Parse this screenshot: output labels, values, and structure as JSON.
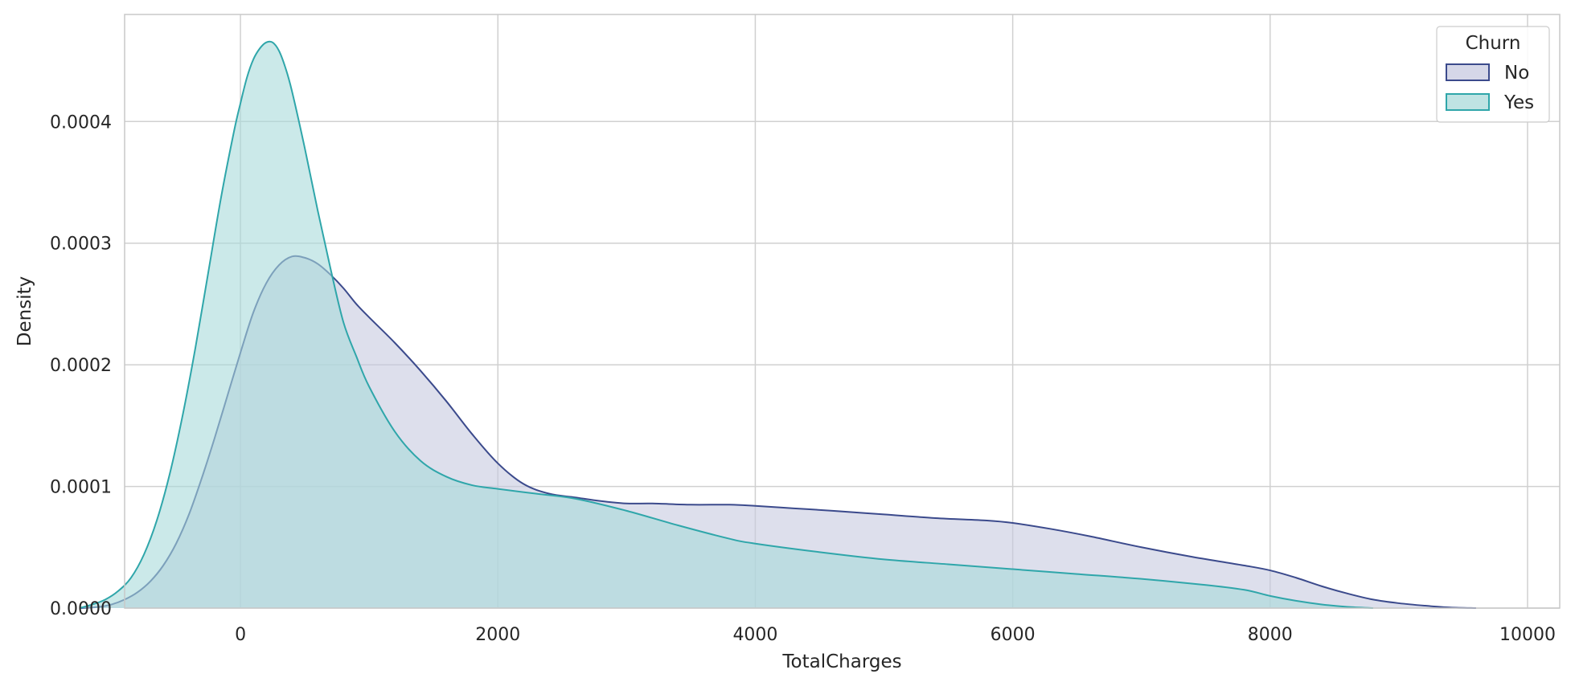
{
  "chart_data": {
    "type": "area",
    "title": "",
    "xlabel": "TotalCharges",
    "ylabel": "Density",
    "xlim": [
      -900,
      10250
    ],
    "ylim": [
      0,
      0.000488
    ],
    "grid": true,
    "x_ticks": [
      0,
      2000,
      4000,
      6000,
      8000,
      10000
    ],
    "x_tick_labels": [
      "0",
      "2000",
      "4000",
      "6000",
      "8000",
      "10000"
    ],
    "y_ticks": [
      0,
      0.0001,
      0.0002,
      0.0003,
      0.0004
    ],
    "y_tick_labels": [
      "0.0000",
      "0.0001",
      "0.0002",
      "0.0003",
      "0.0004"
    ],
    "legend": {
      "title": "Churn",
      "position": "top-right"
    },
    "series": [
      {
        "name": "No",
        "line_color": "#3b4a8c",
        "fill_color": "#c7c9e0",
        "x": [
          -1250,
          -1100,
          -1000,
          -900,
          -800,
          -700,
          -600,
          -500,
          -400,
          -300,
          -200,
          -100,
          0,
          100,
          200,
          300,
          400,
          500,
          600,
          700,
          800,
          900,
          1000,
          1200,
          1400,
          1600,
          1800,
          2000,
          2200,
          2400,
          2600,
          2800,
          3000,
          3200,
          3500,
          3800,
          4000,
          4300,
          4600,
          5000,
          5400,
          5800,
          6000,
          6300,
          6600,
          7000,
          7400,
          7800,
          8000,
          8200,
          8400,
          8600,
          8800,
          9000,
          9200,
          9400,
          9600
        ],
        "y": [
          0,
          1e-06,
          3e-06,
          7e-06,
          1.3e-05,
          2.2e-05,
          3.5e-05,
          5.3e-05,
          7.7e-05,
          0.000107,
          0.00014,
          0.000175,
          0.00021,
          0.000243,
          0.000267,
          0.000282,
          0.000289,
          0.000288,
          0.000283,
          0.000274,
          0.000263,
          0.00025,
          0.000239,
          0.000218,
          0.000195,
          0.00017,
          0.000143,
          0.000119,
          0.000102,
          9.4e-05,
          9.1e-05,
          8.8e-05,
          8.6e-05,
          8.6e-05,
          8.5e-05,
          8.5e-05,
          8.4e-05,
          8.2e-05,
          8e-05,
          7.7e-05,
          7.4e-05,
          7.2e-05,
          7e-05,
          6.5e-05,
          5.9e-05,
          5e-05,
          4.2e-05,
          3.5e-05,
          3.1e-05,
          2.5e-05,
          1.8e-05,
          1.2e-05,
          7e-06,
          4e-06,
          2e-06,
          5e-07,
          0
        ]
      },
      {
        "name": "Yes",
        "line_color": "#2fa6aa",
        "fill_color": "#a9dada",
        "x": [
          -1250,
          -1150,
          -1050,
          -950,
          -850,
          -750,
          -650,
          -550,
          -450,
          -350,
          -250,
          -150,
          -50,
          0,
          50,
          100,
          150,
          200,
          250,
          300,
          350,
          400,
          500,
          600,
          700,
          800,
          900,
          1000,
          1200,
          1400,
          1600,
          1800,
          2000,
          2300,
          2600,
          3000,
          3400,
          3800,
          4000,
          4500,
          5000,
          5500,
          6000,
          6500,
          7000,
          7500,
          7800,
          8000,
          8200,
          8400,
          8600,
          8800
        ],
        "y": [
          0,
          3e-06,
          7e-06,
          1.4e-05,
          2.5e-05,
          4.4e-05,
          7.2e-05,
          0.00011,
          0.000158,
          0.000214,
          0.000276,
          0.000338,
          0.000392,
          0.000415,
          0.000436,
          0.000451,
          0.00046,
          0.000465,
          0.000465,
          0.000458,
          0.000444,
          0.000425,
          0.000378,
          0.000327,
          0.000279,
          0.000235,
          0.000207,
          0.000182,
          0.000145,
          0.000121,
          0.000108,
          0.000101,
          9.8e-05,
          9.4e-05,
          9e-05,
          8e-05,
          6.8e-05,
          5.7e-05,
          5.3e-05,
          4.6e-05,
          4e-05,
          3.6e-05,
          3.2e-05,
          2.8e-05,
          2.4e-05,
          1.9e-05,
          1.5e-05,
          1e-05,
          6e-06,
          3e-06,
          1e-06,
          0
        ]
      }
    ]
  }
}
